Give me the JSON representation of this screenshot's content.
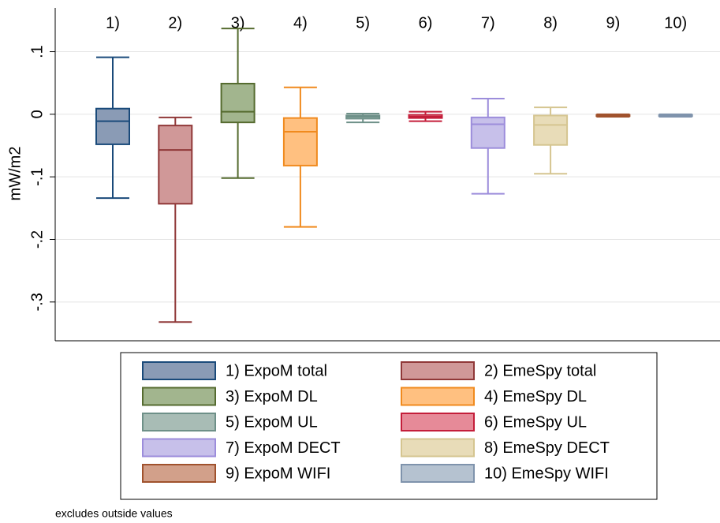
{
  "chart_data": {
    "type": "box",
    "ylabel": "mW/m2",
    "note": "excludes outside values",
    "categories": [
      "1)",
      "2)",
      "3)",
      "4)",
      "5)",
      "6)",
      "7)",
      "8)",
      "9)",
      "10)"
    ],
    "ylim": [
      -0.362,
      0.17
    ],
    "yticks": [
      {
        "value": 0.1,
        "label": ".1"
      },
      0,
      {
        "value": -0.1,
        "label": "-.1"
      },
      {
        "value": -0.2,
        "label": "-.2"
      },
      {
        "value": -0.3,
        "label": "-.3"
      }
    ],
    "grid": true,
    "series": [
      {
        "name": "1) ExpoM total",
        "color": "#8a9bb5",
        "edge_color": "#1a4a7a",
        "whislo": -0.134,
        "q1": -0.048,
        "med": -0.011,
        "q3": 0.009,
        "whishi": 0.091
      },
      {
        "name": "2) EmeSpy total",
        "color": "#d09898",
        "edge_color": "#903838",
        "whislo": -0.332,
        "q1": -0.143,
        "med": -0.057,
        "q3": -0.018,
        "whishi": -0.005
      },
      {
        "name": "3) ExpoM DL",
        "color": "#a2b58e",
        "edge_color": "#556b2f",
        "whislo": -0.102,
        "q1": -0.013,
        "med": 0.004,
        "q3": 0.049,
        "whishi": 0.137
      },
      {
        "name": "4) EmeSpy DL",
        "color": "#ffc080",
        "edge_color": "#f08a1e",
        "whislo": -0.18,
        "q1": -0.082,
        "med": -0.028,
        "q3": -0.006,
        "whishi": 0.043
      },
      {
        "name": "5) ExpoM UL",
        "color": "#a8bcb5",
        "edge_color": "#6e9088",
        "whislo": -0.013,
        "q1": -0.007,
        "med": -0.004,
        "q3": -0.002,
        "whishi": 0.001
      },
      {
        "name": "6) EmeSpy UL",
        "color": "#e68a98",
        "edge_color": "#c41e3a",
        "whislo": -0.011,
        "q1": -0.006,
        "med": -0.004,
        "q3": -0.001,
        "whishi": 0.004
      },
      {
        "name": "7) ExpoM DECT",
        "color": "#c7c0ea",
        "edge_color": "#9c8ddb",
        "whislo": -0.127,
        "q1": -0.054,
        "med": -0.016,
        "q3": -0.005,
        "whishi": 0.025
      },
      {
        "name": "8) EmeSpy DECT",
        "color": "#e8dcb8",
        "edge_color": "#d5c590",
        "whislo": -0.095,
        "q1": -0.049,
        "med": -0.017,
        "q3": -0.002,
        "whishi": 0.011
      },
      {
        "name": "9) ExpoM WIFI",
        "color": "#d2a08a",
        "edge_color": "#a0522d",
        "whislo": -0.004,
        "q1": -0.003,
        "med": -0.002,
        "q3": -0.001,
        "whishi": 0
      },
      {
        "name": "10) EmeSpy WIFI",
        "color": "#b5c2d0",
        "edge_color": "#7f93ac",
        "whislo": -0.004,
        "q1": -0.003,
        "med": -0.002,
        "q3": -0.001,
        "whishi": 0
      }
    ]
  }
}
